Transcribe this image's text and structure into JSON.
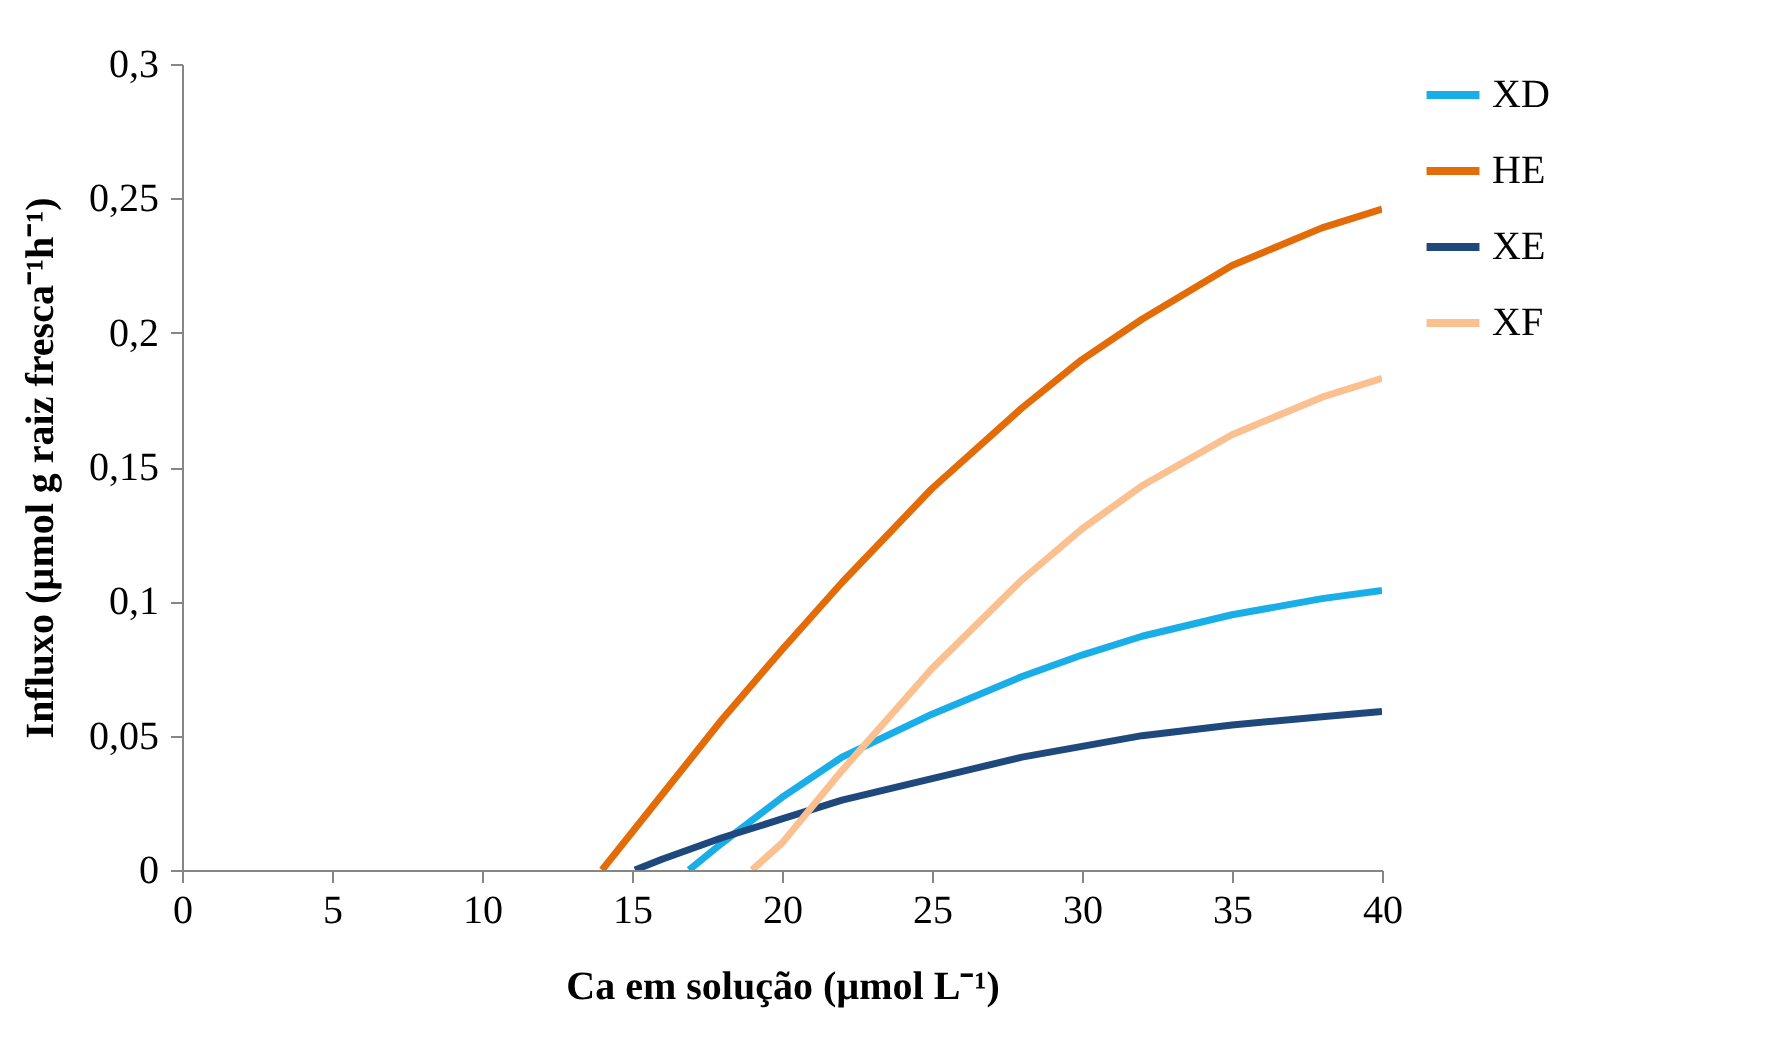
{
  "chart_data": {
    "type": "line",
    "xlabel": "Ca em solução (µmol L⁻¹)",
    "ylabel": "Influxo (µmol g raiz fresca⁻¹h⁻¹)",
    "xlim": [
      0,
      40
    ],
    "ylim": [
      0,
      0.3
    ],
    "xticks": [
      0,
      5,
      10,
      15,
      20,
      25,
      30,
      35,
      40
    ],
    "yticks": [
      0,
      {
        "value": 0.05,
        "label": "0,05"
      },
      {
        "value": 0.1,
        "label": "0,1"
      },
      {
        "value": 0.15,
        "label": "0,15"
      },
      {
        "value": 0.2,
        "label": "0,2"
      },
      {
        "value": 0.25,
        "label": "0,25"
      },
      {
        "value": 0.3,
        "label": "0,3"
      }
    ],
    "legend": "right",
    "series": [
      {
        "name": "XD",
        "color": "#1aaee8",
        "x": [
          16.9,
          18,
          20,
          22,
          25,
          28,
          30,
          32,
          35,
          38,
          40
        ],
        "values": [
          0,
          0.01,
          0.027,
          0.042,
          0.058,
          0.072,
          0.08,
          0.087,
          0.095,
          0.101,
          0.104
        ]
      },
      {
        "name": "HE",
        "color": "#e36c09",
        "x": [
          14,
          16,
          18,
          20,
          22,
          25,
          28,
          30,
          32,
          35,
          38,
          40
        ],
        "values": [
          0,
          0.028,
          0.056,
          0.082,
          0.107,
          0.142,
          0.172,
          0.19,
          0.205,
          0.225,
          0.239,
          0.246
        ]
      },
      {
        "name": "XE",
        "color": "#1f497d",
        "x": [
          15.1,
          16,
          18,
          20,
          22,
          25,
          28,
          30,
          32,
          35,
          38,
          40
        ],
        "values": [
          0,
          0.004,
          0.012,
          0.019,
          0.026,
          0.034,
          0.042,
          0.046,
          0.05,
          0.054,
          0.057,
          0.059
        ]
      },
      {
        "name": "XF",
        "color": "#fac090",
        "x": [
          19,
          20,
          22,
          25,
          28,
          30,
          32,
          35,
          38,
          40
        ],
        "values": [
          0,
          0.01,
          0.037,
          0.075,
          0.108,
          0.127,
          0.143,
          0.162,
          0.176,
          0.183
        ]
      }
    ]
  }
}
